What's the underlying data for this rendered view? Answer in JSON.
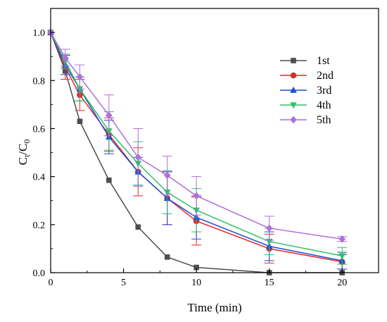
{
  "chart_data": {
    "type": "line",
    "xlabel": "Time (min)",
    "ylabel_main": "C",
    "ylabel_sub1": "t",
    "ylabel_mid": "/C",
    "ylabel_sub2": "0",
    "xlim": [
      0,
      22.5
    ],
    "ylim": [
      0,
      1.1
    ],
    "xticks": [
      0,
      5,
      10,
      15,
      20
    ],
    "yticks": [
      0.0,
      0.2,
      0.4,
      0.6,
      0.8,
      1.0
    ],
    "xtick_labels": [
      "0",
      "5",
      "10",
      "15",
      "20"
    ],
    "ytick_labels": [
      "0.0",
      "0.2",
      "0.4",
      "0.6",
      "0.8",
      "1.0"
    ],
    "legend_position": "top-right",
    "grid": false,
    "series": [
      {
        "name": "1st",
        "color": "#4d4d4d",
        "marker": "square",
        "x": [
          0,
          1,
          2,
          4,
          6,
          8,
          10,
          15,
          20
        ],
        "y": [
          1.0,
          0.84,
          0.63,
          0.385,
          0.19,
          0.065,
          0.022,
          0.0,
          0.0
        ],
        "err": [
          0,
          0,
          0,
          0,
          0,
          0,
          0,
          0,
          0
        ]
      },
      {
        "name": "2nd",
        "color": "#e8262c",
        "marker": "circle",
        "x": [
          0,
          1,
          2,
          4,
          6,
          8,
          10,
          15,
          20
        ],
        "y": [
          1.0,
          0.855,
          0.74,
          0.575,
          0.42,
          0.31,
          0.215,
          0.1,
          0.045
        ],
        "err": [
          0,
          0.05,
          0.065,
          0.07,
          0.1,
          0.11,
          0.1,
          0.06,
          0.03
        ]
      },
      {
        "name": "3rd",
        "color": "#1f4fcf",
        "marker": "triangle-up",
        "x": [
          0,
          1,
          2,
          4,
          6,
          8,
          10,
          15,
          20
        ],
        "y": [
          1.0,
          0.865,
          0.765,
          0.565,
          0.42,
          0.31,
          0.23,
          0.11,
          0.05
        ],
        "err": [
          0,
          0.04,
          0.05,
          0.07,
          0.06,
          0.11,
          0.09,
          0.06,
          0.035
        ]
      },
      {
        "name": "4th",
        "color": "#2fc26a",
        "marker": "triangle-down",
        "x": [
          0,
          1,
          2,
          4,
          6,
          8,
          10,
          15,
          20
        ],
        "y": [
          1.0,
          0.88,
          0.765,
          0.59,
          0.455,
          0.335,
          0.26,
          0.13,
          0.07
        ],
        "err": [
          0,
          0.03,
          0.05,
          0.08,
          0.09,
          0.09,
          0.09,
          0.055,
          0.035
        ]
      },
      {
        "name": "5th",
        "color": "#b06fd9",
        "marker": "diamond",
        "x": [
          0,
          1,
          2,
          4,
          6,
          8,
          10,
          15,
          20
        ],
        "y": [
          1.0,
          0.895,
          0.815,
          0.655,
          0.48,
          0.405,
          0.32,
          0.185,
          0.14
        ],
        "err": [
          0,
          0.035,
          0.05,
          0.085,
          0.12,
          0.08,
          0.08,
          0.05,
          0.01
        ]
      }
    ]
  }
}
